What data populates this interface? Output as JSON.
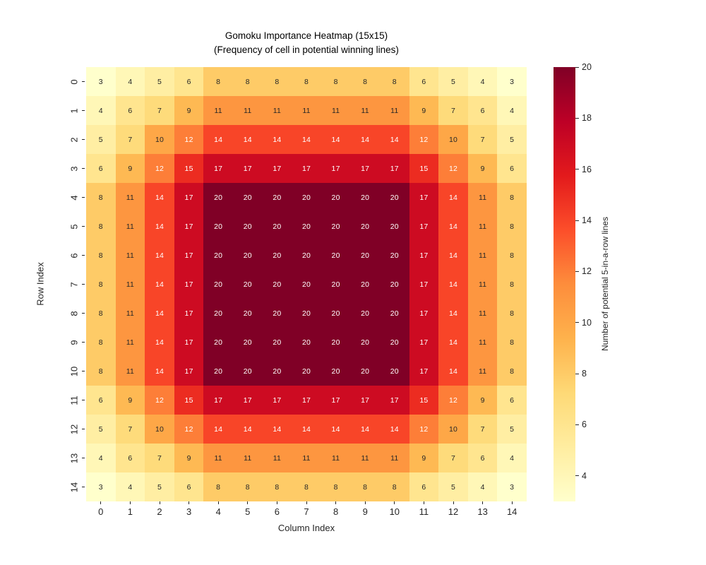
{
  "title": {
    "line1": "Gomoku Importance Heatmap (15x15)",
    "line2": "(Frequency of cell in potential winning lines)"
  },
  "chart_data": {
    "type": "heatmap",
    "title": "Gomoku Importance Heatmap (15x15)",
    "subtitle": "(Frequency of cell in potential winning lines)",
    "xlabel": "Column Index",
    "ylabel": "Row Index",
    "x_ticklabels": [
      "0",
      "1",
      "2",
      "3",
      "4",
      "5",
      "6",
      "7",
      "8",
      "9",
      "10",
      "11",
      "12",
      "13",
      "14"
    ],
    "y_ticklabels": [
      "0",
      "1",
      "2",
      "3",
      "4",
      "5",
      "6",
      "7",
      "8",
      "9",
      "10",
      "11",
      "12",
      "13",
      "14"
    ],
    "rows": [
      [
        3,
        4,
        5,
        6,
        8,
        8,
        8,
        8,
        8,
        8,
        8,
        6,
        5,
        4,
        3
      ],
      [
        4,
        6,
        7,
        9,
        11,
        11,
        11,
        11,
        11,
        11,
        11,
        9,
        7,
        6,
        4
      ],
      [
        5,
        7,
        10,
        12,
        14,
        14,
        14,
        14,
        14,
        14,
        14,
        12,
        10,
        7,
        5
      ],
      [
        6,
        9,
        12,
        15,
        17,
        17,
        17,
        17,
        17,
        17,
        17,
        15,
        12,
        9,
        6
      ],
      [
        8,
        11,
        14,
        17,
        20,
        20,
        20,
        20,
        20,
        20,
        20,
        17,
        14,
        11,
        8
      ],
      [
        8,
        11,
        14,
        17,
        20,
        20,
        20,
        20,
        20,
        20,
        20,
        17,
        14,
        11,
        8
      ],
      [
        8,
        11,
        14,
        17,
        20,
        20,
        20,
        20,
        20,
        20,
        20,
        17,
        14,
        11,
        8
      ],
      [
        8,
        11,
        14,
        17,
        20,
        20,
        20,
        20,
        20,
        20,
        20,
        17,
        14,
        11,
        8
      ],
      [
        8,
        11,
        14,
        17,
        20,
        20,
        20,
        20,
        20,
        20,
        20,
        17,
        14,
        11,
        8
      ],
      [
        8,
        11,
        14,
        17,
        20,
        20,
        20,
        20,
        20,
        20,
        20,
        17,
        14,
        11,
        8
      ],
      [
        8,
        11,
        14,
        17,
        20,
        20,
        20,
        20,
        20,
        20,
        20,
        17,
        14,
        11,
        8
      ],
      [
        6,
        9,
        12,
        15,
        17,
        17,
        17,
        17,
        17,
        17,
        17,
        15,
        12,
        9,
        6
      ],
      [
        5,
        7,
        10,
        12,
        14,
        14,
        14,
        14,
        14,
        14,
        14,
        12,
        10,
        7,
        5
      ],
      [
        4,
        6,
        7,
        9,
        11,
        11,
        11,
        11,
        11,
        11,
        11,
        9,
        7,
        6,
        4
      ],
      [
        3,
        4,
        5,
        6,
        8,
        8,
        8,
        8,
        8,
        8,
        8,
        6,
        5,
        4,
        3
      ]
    ],
    "vmin": 3,
    "vmax": 20,
    "colormap": "YlOrRd",
    "colormap_stops": [
      [
        0.0,
        "#ffffcc"
      ],
      [
        0.125,
        "#ffeda0"
      ],
      [
        0.25,
        "#fed976"
      ],
      [
        0.375,
        "#feb24c"
      ],
      [
        0.5,
        "#fd8d3c"
      ],
      [
        0.625,
        "#fc4e2a"
      ],
      [
        0.75,
        "#e31a1c"
      ],
      [
        0.875,
        "#bd0026"
      ],
      [
        1.0,
        "#800026"
      ]
    ],
    "annot_white_threshold": 12,
    "annot_colors": {
      "dark": "#262626",
      "light": "#ffffff"
    },
    "colorbar": {
      "label": "Number of potential 5-in-a-row lines",
      "ticks": [
        "4",
        "6",
        "8",
        "10",
        "12",
        "14",
        "16",
        "18",
        "20"
      ],
      "tick_values": [
        4,
        6,
        8,
        10,
        12,
        14,
        16,
        18,
        20
      ]
    },
    "legend": "none",
    "grid": "off"
  }
}
